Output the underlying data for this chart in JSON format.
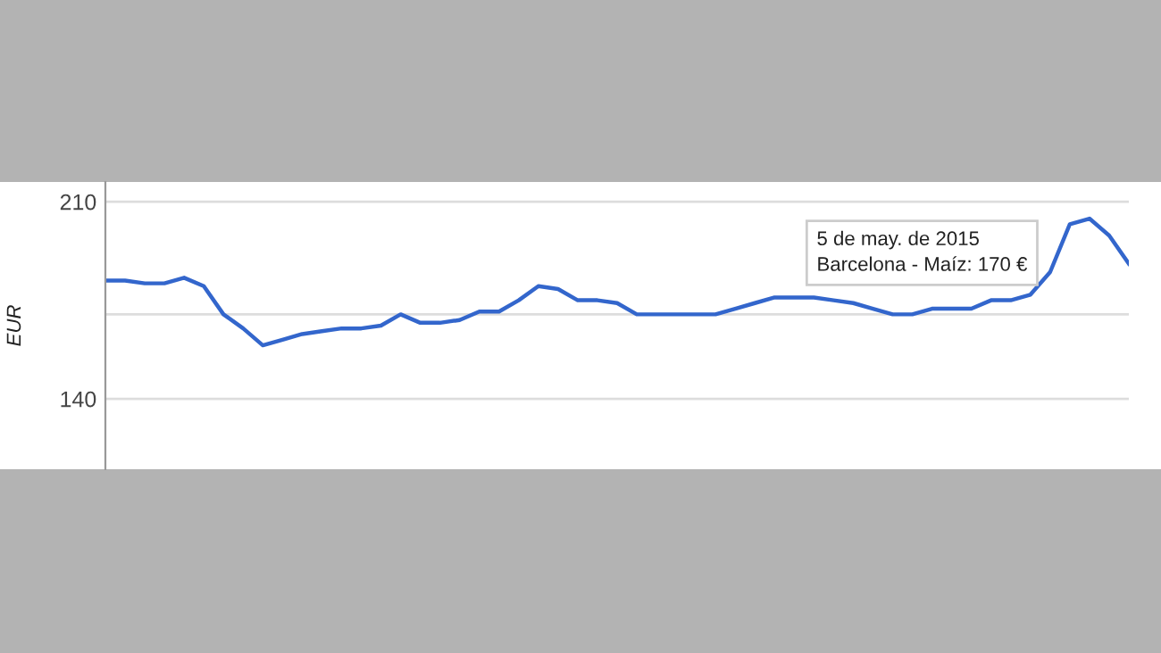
{
  "chart_data": {
    "type": "line",
    "ylabel": "EUR",
    "categories": [
      null,
      null,
      null,
      null,
      null,
      null,
      null,
      null,
      null,
      null,
      null,
      null,
      null,
      null,
      null,
      null,
      null,
      null,
      null,
      null,
      null,
      null,
      null,
      null,
      null,
      null,
      null,
      null,
      null,
      null,
      null,
      null,
      null,
      null,
      null,
      null,
      null,
      null,
      null,
      null,
      null,
      null,
      null,
      null,
      null,
      null,
      null,
      null,
      null,
      null,
      null,
      null,
      null
    ],
    "series": [
      {
        "color": "#3366cc",
        "values": [
          182,
          182,
          181,
          181,
          183,
          180,
          170,
          165,
          159,
          161,
          163,
          164,
          165,
          165,
          166,
          170,
          167,
          167,
          168,
          171,
          171,
          175,
          180,
          179,
          175,
          175,
          174,
          170,
          170,
          170,
          170,
          170,
          172,
          174,
          176,
          176,
          176,
          175,
          174,
          172,
          170,
          170,
          172,
          172,
          172,
          175,
          175,
          177,
          185,
          202,
          204,
          198,
          188
        ]
      }
    ],
    "ylim": [
      115,
      217
    ],
    "yticks": [
      140,
      {
        "value": 170,
        "label": null
      },
      210
    ],
    "grid": "y",
    "line_style": "solid",
    "marker": "none",
    "annotations": [
      "5 de may. de 2015",
      "Barcelona - Maíz: 170 €"
    ]
  }
}
